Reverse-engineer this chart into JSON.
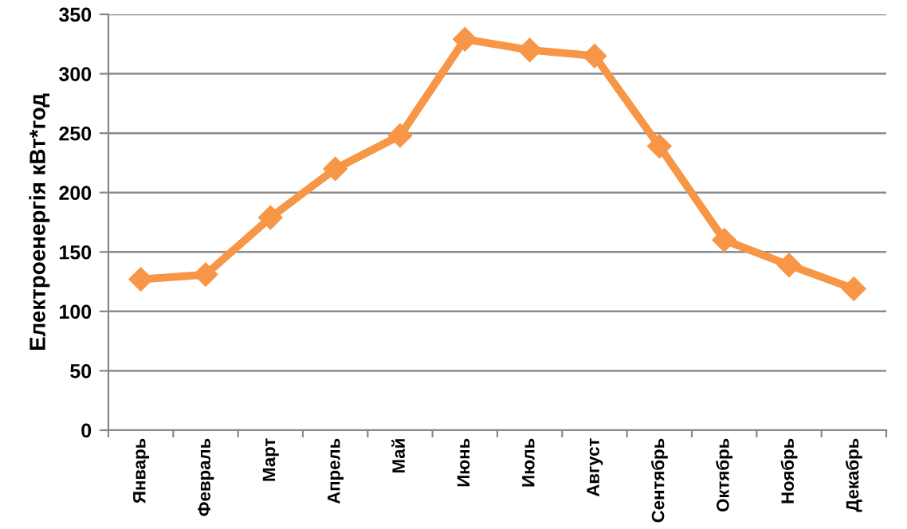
{
  "chart_data": {
    "type": "line",
    "ylabel": "Електроенергія кВт*год",
    "categories": [
      "Январь",
      "Февраль",
      "Март",
      "Апрель",
      "Май",
      "Июнь",
      "Июль",
      "Август",
      "Сентябрь",
      "Октябрь",
      "Ноябрь",
      "Декабрь"
    ],
    "series": [
      {
        "color": "#f79646",
        "values": [
          127,
          131,
          179,
          220,
          248,
          329,
          320,
          315,
          239,
          160,
          139,
          119
        ]
      }
    ],
    "ylim": [
      0,
      350
    ],
    "yticks": [
      0,
      50,
      100,
      150,
      200,
      250,
      300,
      350
    ],
    "grid": "y",
    "marker": "diamond",
    "line_style": "solid"
  }
}
